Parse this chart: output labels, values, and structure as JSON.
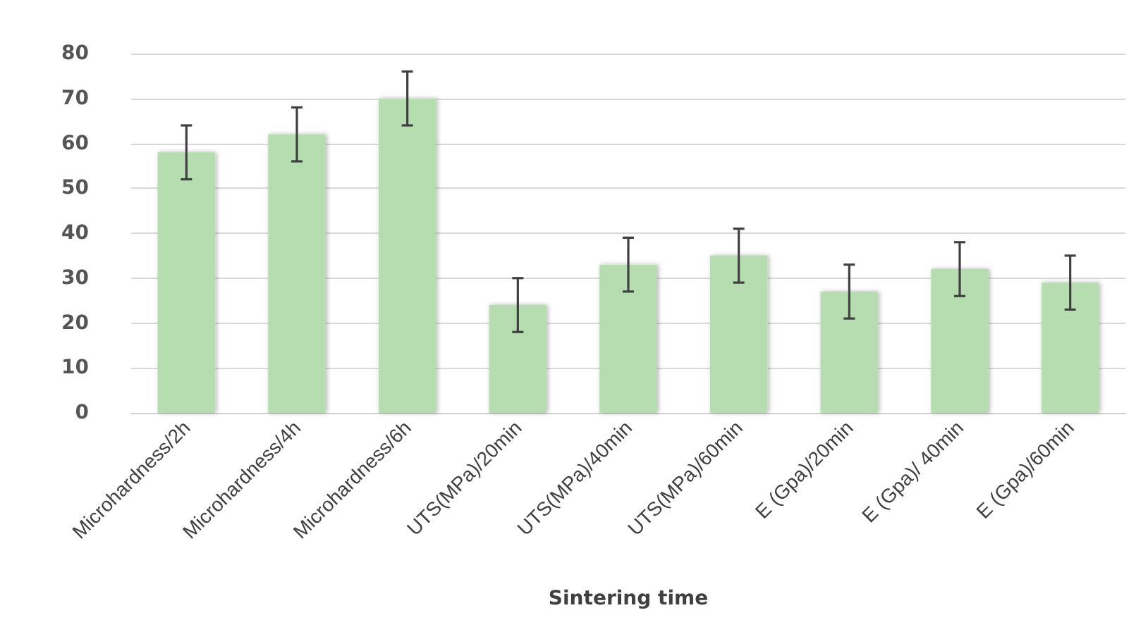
{
  "chart_data": {
    "type": "bar",
    "xlabel": "Sintering time",
    "categories": [
      "Microhardness/2h",
      "Microhardness/4h",
      "Microhardness/6h",
      "UTS(MPa)/20min",
      "UTS(MPa)/40min",
      "UTS(MPa)/60min",
      "E (Gpa)/20min",
      "E (Gpa)/ 40min",
      "E (Gpa)/60min"
    ],
    "values": [
      58,
      62,
      70,
      24,
      33,
      35,
      27,
      32,
      29
    ],
    "errors": [
      6,
      6,
      6,
      6,
      6,
      6,
      6,
      6,
      6
    ],
    "color": "#b5ddb0",
    "ylim": [
      0,
      80
    ],
    "yticks": [
      0,
      10,
      20,
      30,
      40,
      50,
      60,
      70,
      80
    ],
    "grid": "y"
  }
}
